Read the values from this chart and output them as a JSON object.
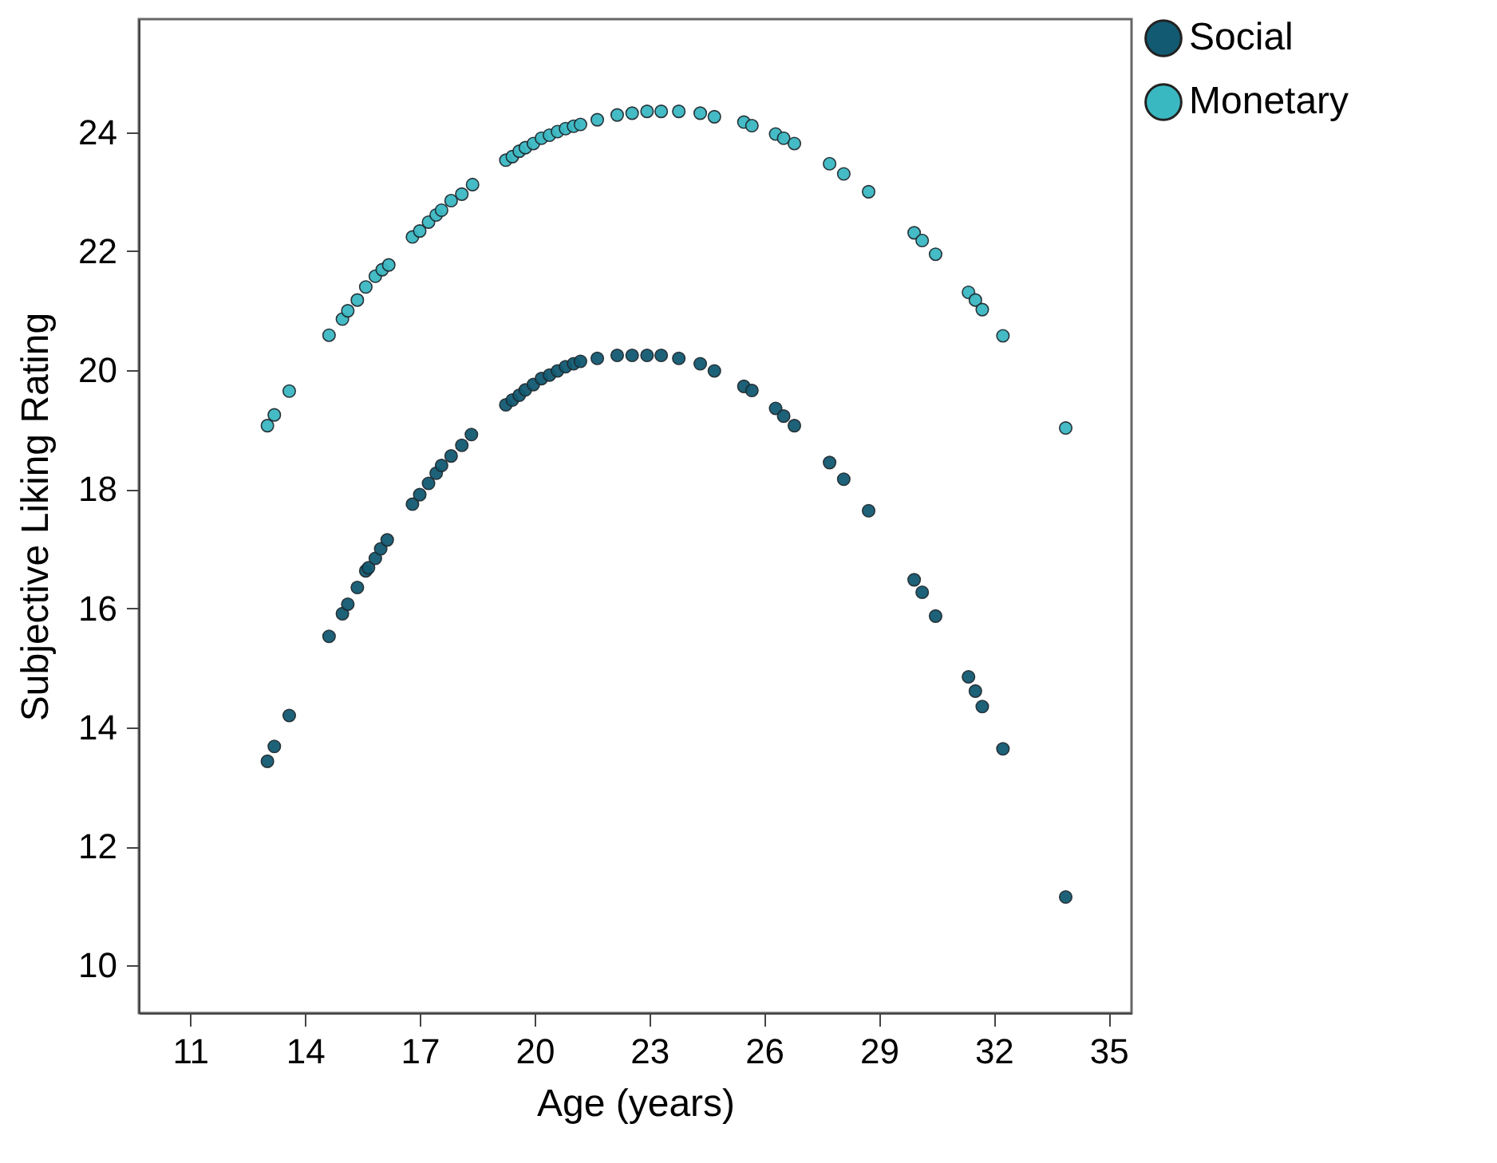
{
  "chart_data": {
    "type": "scatter",
    "xlabel": "Age (years)",
    "ylabel": "Subjective Liking Rating",
    "xlim": [
      9.66,
      35.6
    ],
    "ylim": [
      9.2,
      25.9
    ],
    "xticks": [
      11,
      14,
      17,
      20,
      23,
      26,
      29,
      32,
      35
    ],
    "yticks": [
      10,
      12,
      14,
      16,
      18,
      20,
      22,
      24
    ],
    "grid": false,
    "legend": "top right",
    "marker": "circle",
    "series": [
      {
        "name": "Social",
        "color": "#115a72",
        "x": [
          13.02,
          13.2,
          13.59,
          14.63,
          14.98,
          15.12,
          15.37,
          15.59,
          15.66,
          15.84,
          15.98,
          16.15,
          16.81,
          17.0,
          17.23,
          17.43,
          17.57,
          17.82,
          18.1,
          18.35,
          19.25,
          19.42,
          19.6,
          19.76,
          19.97,
          20.18,
          20.39,
          20.6,
          20.81,
          21.02,
          21.2,
          21.64,
          22.16,
          22.55,
          22.94,
          23.31,
          23.77,
          24.33,
          24.7,
          25.47,
          25.68,
          26.3,
          26.51,
          26.79,
          27.71,
          28.08,
          28.73,
          29.92,
          30.13,
          30.48,
          31.34,
          31.52,
          31.7,
          32.24,
          33.88
        ],
        "values": [
          13.43,
          13.68,
          14.2,
          15.53,
          15.91,
          16.07,
          16.35,
          16.63,
          16.68,
          16.84,
          17.0,
          17.15,
          17.75,
          17.91,
          18.1,
          18.27,
          18.4,
          18.56,
          18.74,
          18.92,
          19.42,
          19.5,
          19.58,
          19.67,
          19.76,
          19.86,
          19.92,
          19.99,
          20.06,
          20.11,
          20.15,
          20.2,
          20.25,
          20.25,
          20.25,
          20.25,
          20.2,
          20.11,
          19.99,
          19.73,
          19.66,
          19.36,
          19.23,
          19.07,
          18.45,
          18.17,
          17.64,
          16.48,
          16.27,
          15.87,
          14.85,
          14.61,
          14.35,
          13.64,
          11.15
        ]
      },
      {
        "name": "Monetary",
        "color": "#3ab8c2",
        "x": [
          13.02,
          13.2,
          13.59,
          14.63,
          14.98,
          15.12,
          15.37,
          15.59,
          15.84,
          16.02,
          16.19,
          16.81,
          17.0,
          17.23,
          17.43,
          17.57,
          17.82,
          18.1,
          18.38,
          19.25,
          19.42,
          19.6,
          19.76,
          19.97,
          20.18,
          20.39,
          20.6,
          20.81,
          21.02,
          21.2,
          21.64,
          22.16,
          22.55,
          22.94,
          23.31,
          23.77,
          24.33,
          24.7,
          25.47,
          25.68,
          26.3,
          26.51,
          26.79,
          27.71,
          28.08,
          28.73,
          29.92,
          30.13,
          30.48,
          31.34,
          31.52,
          31.7,
          32.24,
          33.88
        ],
        "values": [
          19.07,
          19.25,
          19.65,
          20.59,
          20.86,
          21.0,
          21.18,
          21.4,
          21.58,
          21.69,
          21.77,
          22.24,
          22.34,
          22.49,
          22.61,
          22.69,
          22.85,
          22.96,
          23.12,
          23.53,
          23.59,
          23.68,
          23.74,
          23.81,
          23.9,
          23.95,
          24.01,
          24.06,
          24.1,
          24.13,
          24.21,
          24.29,
          24.32,
          24.35,
          24.35,
          24.35,
          24.32,
          24.26,
          24.17,
          24.11,
          23.97,
          23.9,
          23.81,
          23.47,
          23.3,
          23.0,
          22.31,
          22.18,
          21.95,
          21.31,
          21.18,
          21.02,
          20.58,
          19.03
        ]
      }
    ]
  }
}
